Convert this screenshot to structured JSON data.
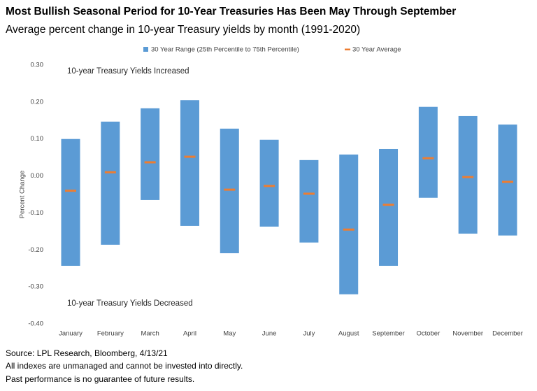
{
  "chart_data": {
    "type": "floating-bar",
    "title": "Most Bullish Seasonal Period for 10-Year Treasuries Has Been May Through September",
    "subtitle": "Average percent change in 10-year Treasury yields by month (1991-2020)",
    "y_label": "Percent Change",
    "annotations": [
      "10-year Treasury Yields Increased",
      "10-year Treasury Yields Decreased"
    ],
    "categories": [
      "January",
      "February",
      "March",
      "April",
      "May",
      "June",
      "July",
      "August",
      "September",
      "October",
      "November",
      "December"
    ],
    "series": [
      {
        "name": "30 Year Range (25th Percentile to 75th Percentile)",
        "color": "#5b9bd5",
        "low": [
          -0.243,
          -0.186,
          -0.065,
          -0.135,
          -0.209,
          -0.137,
          -0.18,
          -0.32,
          -0.243,
          -0.059,
          -0.156,
          -0.161
        ],
        "high": [
          0.1,
          0.147,
          0.183,
          0.205,
          0.128,
          0.098,
          0.043,
          0.058,
          0.073,
          0.187,
          0.162,
          0.139
        ]
      },
      {
        "name": "30 Year Average",
        "color": "#ed7d31",
        "values": [
          -0.04,
          0.01,
          0.037,
          0.052,
          -0.037,
          -0.027,
          -0.048,
          -0.145,
          -0.078,
          0.048,
          -0.003,
          -0.016
        ]
      }
    ],
    "ylim": [
      -0.4,
      0.3
    ],
    "yticks": [
      {
        "value": 0.3,
        "label": "0.30"
      },
      {
        "value": 0.2,
        "label": "0.20"
      },
      {
        "value": 0.1,
        "label": "0.10"
      },
      {
        "value": 0,
        "label": "0.00"
      },
      {
        "value": -0.1,
        "label": "-0.10"
      },
      {
        "value": -0.2,
        "label": "-0.20"
      },
      {
        "value": -0.3,
        "label": "-0.30"
      },
      {
        "value": -0.4,
        "label": "-0.40"
      }
    ],
    "grid": false
  },
  "footer": [
    "Source: LPL Research, Bloomberg, 4/13/21",
    "All indexes are unmanaged and cannot be invested into directly.",
    "Past performance is no guarantee of future results."
  ]
}
